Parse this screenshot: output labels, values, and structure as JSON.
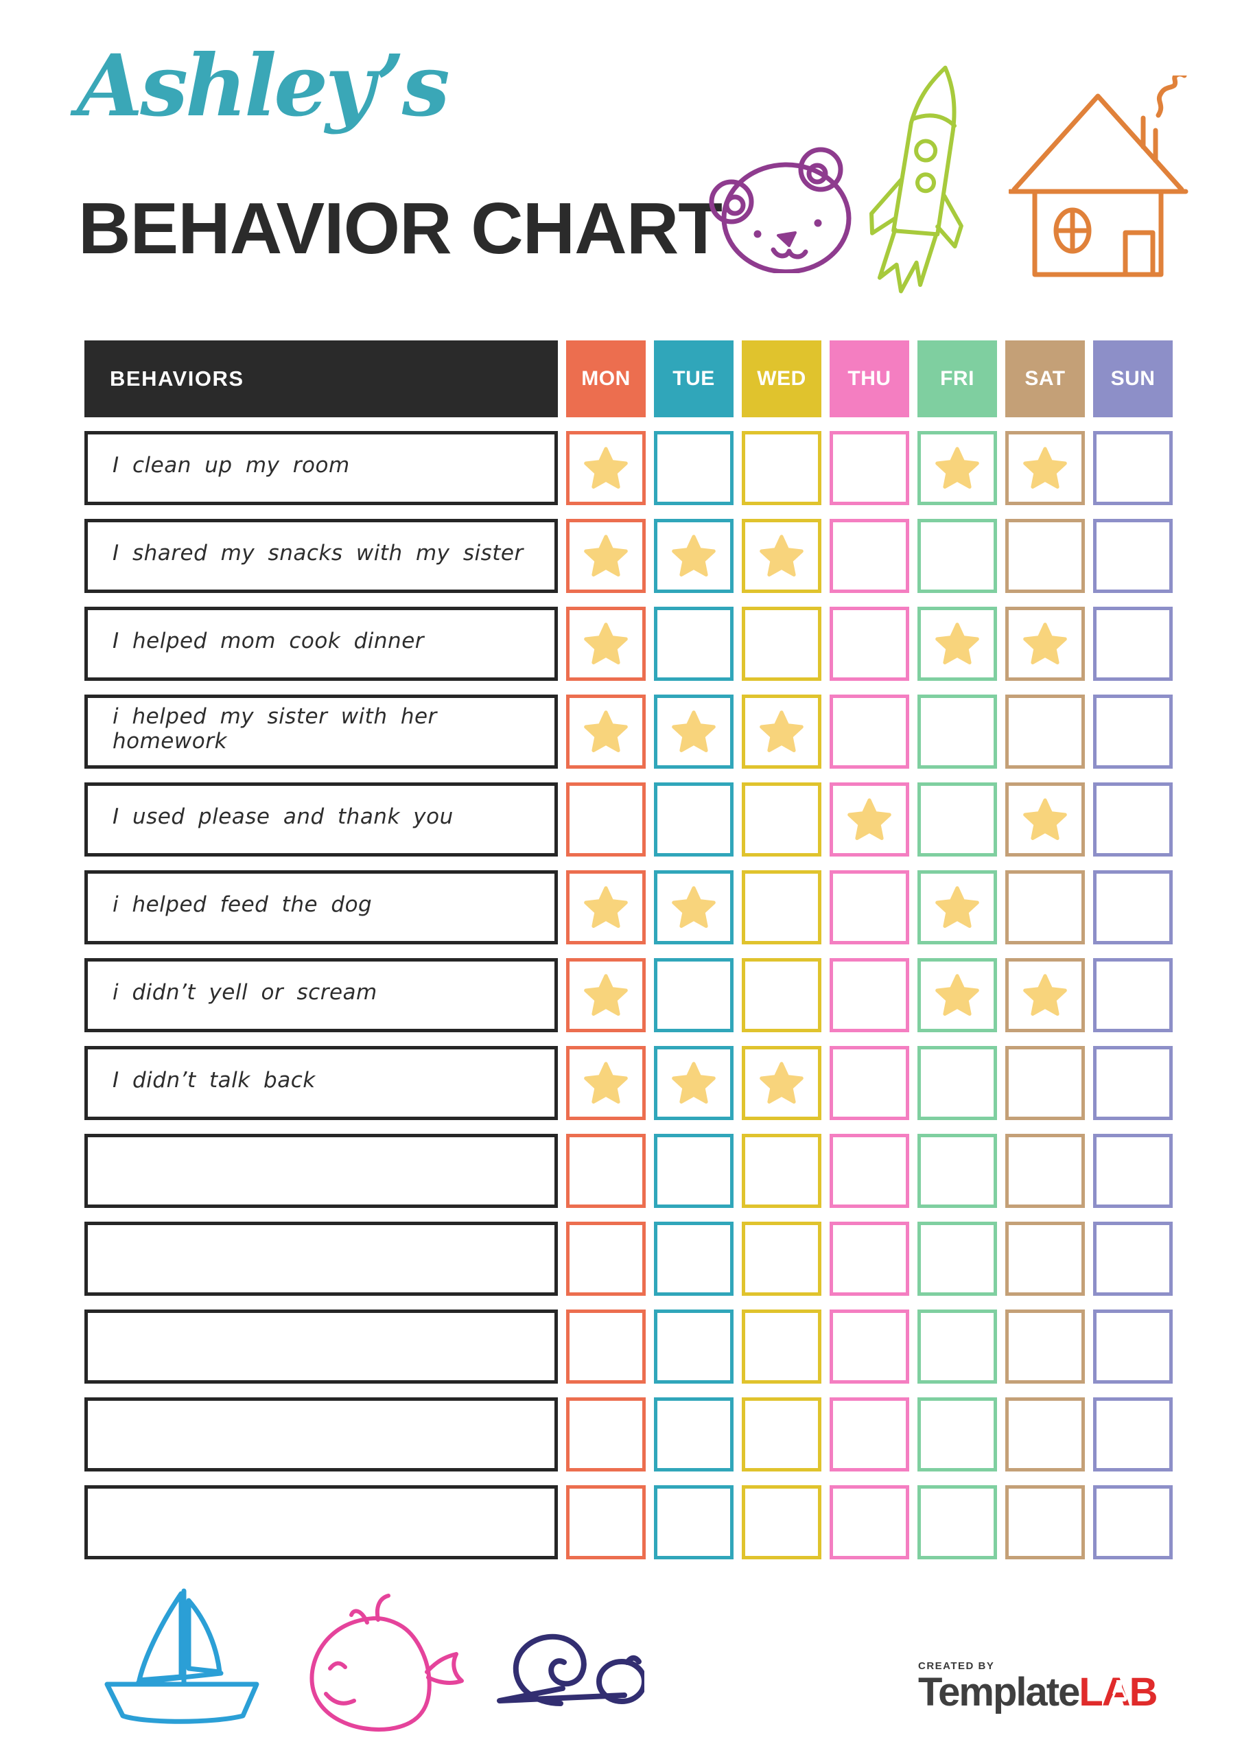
{
  "header": {
    "title_script": "Ashley’s",
    "title_script_color": "#3aa7b7",
    "title_main": "BEHAVIOR CHART",
    "title_main_color": "#2b2b2b",
    "doodles": [
      {
        "name": "bear-icon",
        "color": "#8e3b8e"
      },
      {
        "name": "rocket-icon",
        "color": "#a7ca3c"
      },
      {
        "name": "house-icon",
        "color": "#e0813a"
      }
    ]
  },
  "table": {
    "behaviors_header": "BEHAVIORS",
    "behaviors_header_bg": "#2a2a2a",
    "star_color": "#f8d47c",
    "days": [
      {
        "label": "MON",
        "color": "#ec6e4f"
      },
      {
        "label": "TUE",
        "color": "#30a6ba"
      },
      {
        "label": "WED",
        "color": "#e0c32d"
      },
      {
        "label": "THU",
        "color": "#f47ec1"
      },
      {
        "label": "FRI",
        "color": "#7fcfa0"
      },
      {
        "label": "SAT",
        "color": "#c4a077"
      },
      {
        "label": "SUN",
        "color": "#8d8fc8"
      }
    ],
    "rows": [
      {
        "behavior": "I clean up my room",
        "stars": [
          0,
          4,
          5
        ]
      },
      {
        "behavior": "I shared my snacks with my sister",
        "stars": [
          0,
          1,
          2
        ]
      },
      {
        "behavior": "I helped mom cook dinner",
        "stars": [
          0,
          4,
          5
        ]
      },
      {
        "behavior": "i helped my sister with her homework",
        "stars": [
          0,
          1,
          2
        ]
      },
      {
        "behavior": "I used please and thank you",
        "stars": [
          3,
          5
        ]
      },
      {
        "behavior": "i helped feed the dog",
        "stars": [
          0,
          1,
          4
        ]
      },
      {
        "behavior": "i didn’t yell or scream",
        "stars": [
          0,
          4,
          5
        ]
      },
      {
        "behavior": "I didn’t talk back",
        "stars": [
          0,
          1,
          2
        ]
      },
      {
        "behavior": "",
        "stars": []
      },
      {
        "behavior": "",
        "stars": []
      },
      {
        "behavior": "",
        "stars": []
      },
      {
        "behavior": "",
        "stars": []
      },
      {
        "behavior": "",
        "stars": []
      }
    ]
  },
  "footer": {
    "doodles": [
      {
        "name": "sailboat-icon",
        "color": "#2b9fd6"
      },
      {
        "name": "whale-icon",
        "color": "#e5439b"
      },
      {
        "name": "snail-icon",
        "color": "#322e71"
      }
    ],
    "logo": {
      "created_by": "CREATED BY",
      "brand_primary": "Template",
      "brand_accent": "LAB",
      "created_by_color": "#3a3a3a",
      "primary_color": "#3f3f3f",
      "accent_color": "#e02b2b"
    }
  }
}
